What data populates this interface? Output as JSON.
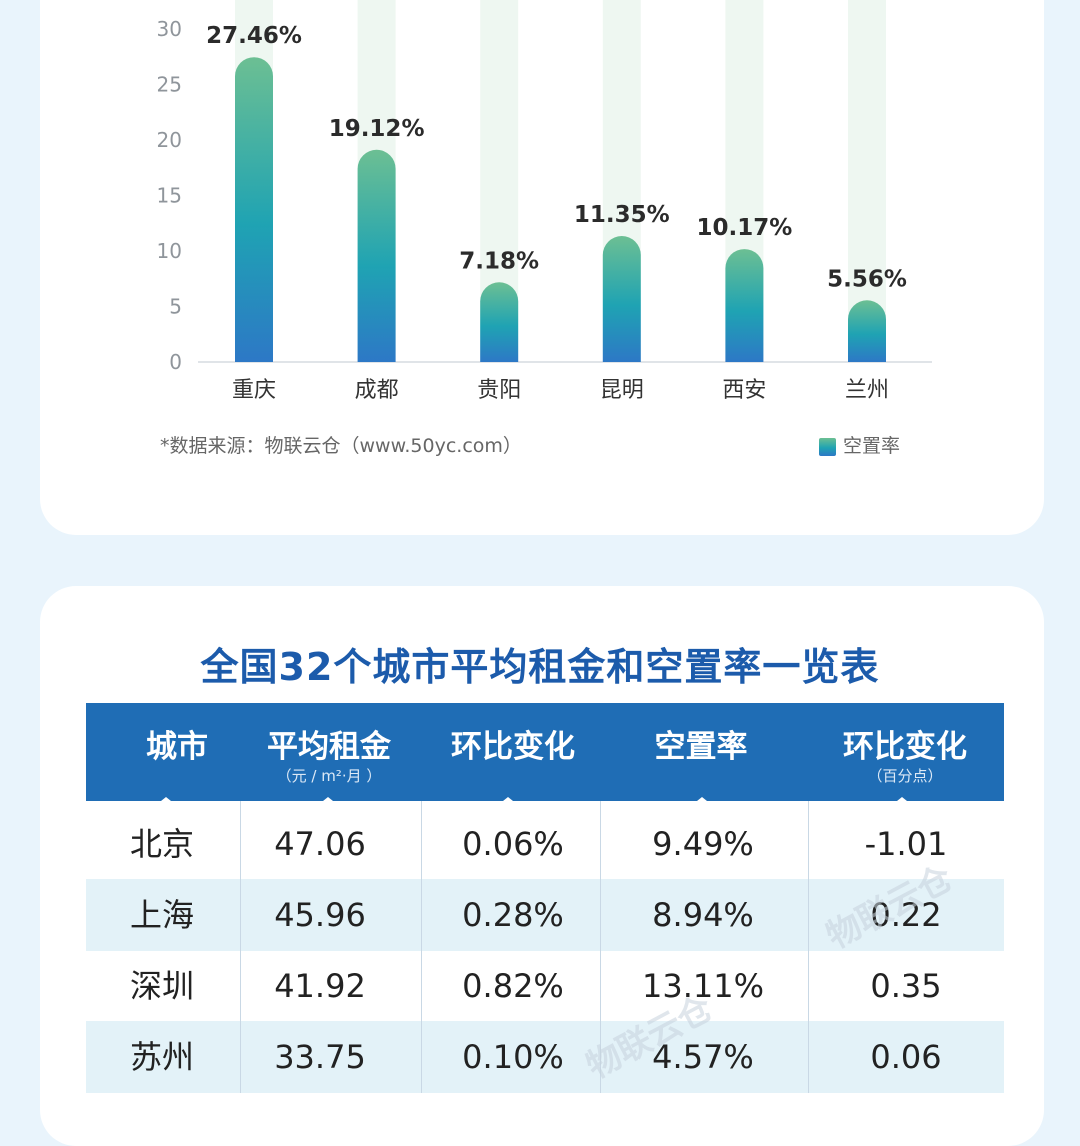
{
  "chart_data": {
    "type": "bar",
    "categories": [
      "重庆",
      "成都",
      "贵阳",
      "昆明",
      "西安",
      "兰州"
    ],
    "series": [
      {
        "name": "空置率",
        "values": [
          27.46,
          19.12,
          7.18,
          11.35,
          10.17,
          5.56
        ]
      }
    ],
    "data_labels": [
      "27.46%",
      "19.12%",
      "7.18%",
      "11.35%",
      "10.17%",
      "5.56%"
    ],
    "ylim": [
      0,
      30
    ],
    "yticks": [
      0,
      5,
      10,
      15,
      20,
      25,
      30
    ],
    "grid": false,
    "legend": "bottom-right",
    "source": "*数据来源：物联云仓（www.50yc.com）",
    "colors": {
      "bar_top": "#6cbf93",
      "bar_mid": "#1fa3b3",
      "bar_bottom": "#2d78c6",
      "background_column": "#eef7f1"
    }
  },
  "table": {
    "title": "全国32个城市平均租金和空置率一览表",
    "headers": [
      {
        "main": "城市",
        "sub": ""
      },
      {
        "main": "平均租金",
        "sub": "（元 / m²·月 ）"
      },
      {
        "main": "环比变化",
        "sub": ""
      },
      {
        "main": "空置率",
        "sub": ""
      },
      {
        "main": "环比变化",
        "sub": "（百分点）"
      }
    ],
    "rows": [
      [
        "北京",
        "47.06",
        "0.06%",
        "9.49%",
        "-1.01"
      ],
      [
        "上海",
        "45.96",
        "0.28%",
        "8.94%",
        "0.22"
      ],
      [
        "深圳",
        "41.92",
        "0.82%",
        "13.11%",
        "0.35"
      ],
      [
        "苏州",
        "33.75",
        "0.10%",
        "4.57%",
        "0.06"
      ]
    ],
    "colors": {
      "header_bg": "#1f6db5",
      "row_alt": "#e3f2f8",
      "title": "#1c5bab"
    }
  },
  "watermark": {
    "text": "物联云仓"
  }
}
